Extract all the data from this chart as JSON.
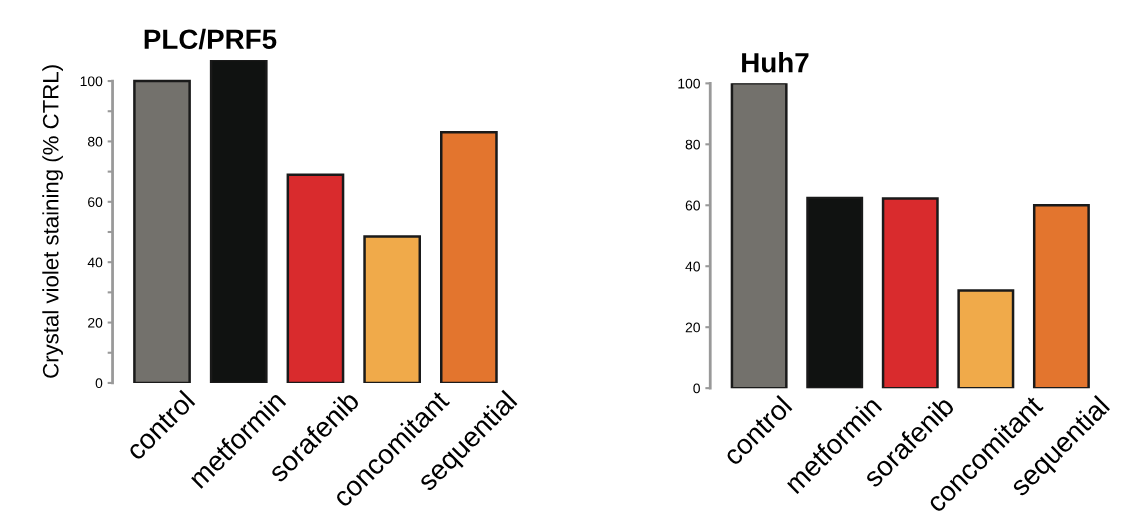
{
  "chart_data": [
    {
      "type": "bar",
      "title": "PLC/PRF5",
      "ylabel": "Crystal violet staining (% CTRL)",
      "categories": [
        "control",
        "metformin",
        "sorafenib",
        "concomitant",
        "sequential"
      ],
      "values": [
        100,
        107,
        69,
        48.5,
        83
      ],
      "colors": [
        "#73716c",
        "#101211",
        "#d92b2d",
        "#f0aa4a",
        "#e3752e"
      ],
      "ylim": [
        0,
        107
      ],
      "yticks": [
        0,
        {
          "value": 10,
          "label": null
        },
        20,
        {
          "value": 30,
          "label": null
        },
        40,
        {
          "value": 50,
          "label": null
        },
        60,
        {
          "value": 70,
          "label": null
        },
        80,
        {
          "value": 90,
          "label": null
        },
        100
      ],
      "grid": false,
      "legend": false
    },
    {
      "type": "bar",
      "title": "Huh7",
      "categories": [
        "control",
        "metformin",
        "sorafenib",
        "concomitant",
        "sequential"
      ],
      "values": [
        100,
        62.4,
        62.2,
        32,
        60
      ],
      "colors": [
        "#73716c",
        "#101211",
        "#d92b2d",
        "#f0aa4a",
        "#e3752e"
      ],
      "ylim": [
        0,
        100
      ],
      "yticks": [
        0,
        20,
        40,
        60,
        80,
        100
      ],
      "grid": false,
      "legend": false
    }
  ]
}
